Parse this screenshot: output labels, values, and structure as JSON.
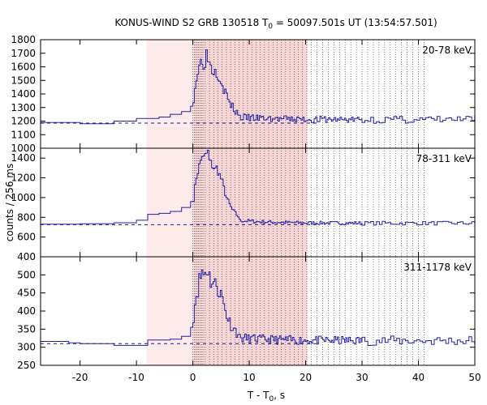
{
  "chart_data": {
    "type": "line",
    "title_main": "KONUS-WIND S2 GRB 130518 T",
    "title_sub": "0",
    "title_rest": " = 50097.501s UT (13:54:57.501)",
    "xlabel_main": "T - T",
    "xlabel_sub": "0",
    "xlabel_rest": ", s",
    "ylabel": "counts / 256 ms",
    "xlim": [
      -27,
      50
    ],
    "xticks": [
      -20,
      -10,
      0,
      10,
      20,
      30,
      40,
      50
    ],
    "xtick_labels": [
      "-20",
      "-10",
      "0",
      "10",
      "20",
      "30",
      "40",
      "50"
    ],
    "shaded_interval": [
      -8.2,
      20.3
    ],
    "dense_shaded_interval": [
      0,
      20.3
    ],
    "panels": [
      {
        "label": "20-78 keV",
        "ylim": [
          1000,
          1800
        ],
        "yticks": [
          1000,
          1100,
          1200,
          1300,
          1400,
          1500,
          1600,
          1700,
          1800
        ],
        "ytick_labels": [
          "1000",
          "1100",
          "1200",
          "1300",
          "1400",
          "1500",
          "1600",
          "1700",
          "1800"
        ],
        "background": 1185,
        "base": 1210,
        "peak": 1690,
        "noise": 25,
        "pre_steps": [
          [
            -27,
            1190
          ],
          [
            -20,
            1180
          ],
          [
            -14,
            1200
          ],
          [
            -10,
            1220
          ],
          [
            -8,
            1220
          ],
          [
            -6,
            1230
          ],
          [
            -4,
            1250
          ],
          [
            -2,
            1270
          ],
          [
            -0.4,
            1310
          ]
        ],
        "seed": 3
      },
      {
        "label": "78-311 keV",
        "ylim": [
          400,
          1500
        ],
        "yticks": [
          400,
          600,
          800,
          1000,
          1200,
          1400
        ],
        "ytick_labels": [
          "400",
          "600",
          "800",
          "1000",
          "1200",
          "1400"
        ],
        "background": 725,
        "base": 740,
        "peak": 1460,
        "noise": 18,
        "pre_steps": [
          [
            -27,
            730
          ],
          [
            -20,
            735
          ],
          [
            -14,
            745
          ],
          [
            -10,
            770
          ],
          [
            -8,
            830
          ],
          [
            -6,
            840
          ],
          [
            -4,
            860
          ],
          [
            -2,
            900
          ],
          [
            -0.4,
            960
          ]
        ],
        "seed": 7
      },
      {
        "label": "311-1178 keV",
        "ylim": [
          250,
          550
        ],
        "yticks": [
          250,
          300,
          350,
          400,
          450,
          500
        ],
        "ytick_labels": [
          "250",
          "300",
          "350",
          "400",
          "450",
          "500"
        ],
        "background": 310,
        "base": 318,
        "peak": 520,
        "noise": 12,
        "pre_steps": [
          [
            -27,
            316
          ],
          [
            -22,
            312
          ],
          [
            -20,
            310
          ],
          [
            -14,
            305
          ],
          [
            -8,
            320
          ],
          [
            -4,
            322
          ],
          [
            -2,
            330
          ],
          [
            -0.4,
            355
          ]
        ],
        "seed": 11
      }
    ]
  }
}
